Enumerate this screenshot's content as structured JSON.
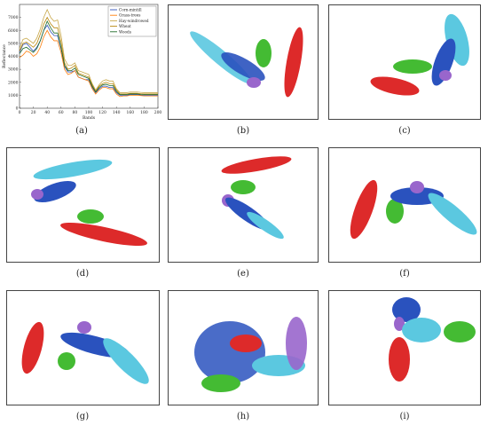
{
  "panels": [
    {
      "id": "a",
      "caption": "(a)"
    },
    {
      "id": "b",
      "caption": "(b)"
    },
    {
      "id": "c",
      "caption": "(c)"
    },
    {
      "id": "d",
      "caption": "(d)"
    },
    {
      "id": "e",
      "caption": "(e)"
    },
    {
      "id": "f",
      "caption": "(f)"
    },
    {
      "id": "g",
      "caption": "(g)"
    },
    {
      "id": "h",
      "caption": "(h)"
    },
    {
      "id": "i",
      "caption": "(i)"
    }
  ],
  "colors": {
    "corn": "#3355bb",
    "grass": "#ff7f0e",
    "hay": "#c8a84a",
    "wheat": "#b8860b",
    "woods": "#1f6b2a",
    "cyan": "#5bc8e0",
    "blue": "#2a52be",
    "green": "#44bb33",
    "red": "#dd2a2a",
    "purple": "#9966cc"
  },
  "chart_data": {
    "type": "line",
    "title": "",
    "xlabel": "Bands",
    "ylabel": "Reflectance",
    "xlim": [
      0,
      200
    ],
    "ylim": [
      0,
      8000
    ],
    "x_ticks": [
      "0",
      "20",
      "40",
      "60",
      "80",
      "100",
      "120",
      "140",
      "160",
      "180",
      "200"
    ],
    "y_ticks": [
      "0",
      "1000",
      "2000",
      "3000",
      "4000",
      "5000",
      "6000",
      "7000"
    ],
    "x": [
      0,
      5,
      10,
      15,
      20,
      25,
      30,
      35,
      40,
      45,
      50,
      55,
      60,
      65,
      70,
      75,
      80,
      85,
      90,
      95,
      100,
      105,
      110,
      115,
      120,
      125,
      130,
      135,
      140,
      145,
      150,
      155,
      160,
      165,
      170,
      175,
      180,
      185,
      190,
      195,
      200
    ],
    "series": [
      {
        "name": "Corn-mintill",
        "values": [
          4300,
          4900,
          5000,
          4700,
          4400,
          4700,
          5200,
          6000,
          6400,
          5900,
          5600,
          5600,
          4600,
          3200,
          2800,
          2800,
          2900,
          2400,
          2300,
          2200,
          2200,
          1600,
          1200,
          1500,
          1700,
          1700,
          1600,
          1600,
          1200,
          1000,
          1000,
          1000,
          1050,
          1050,
          1050,
          1020,
          1000,
          1000,
          1000,
          1000,
          1000
        ]
      },
      {
        "name": "Grass-trees",
        "values": [
          3900,
          4100,
          4400,
          4300,
          4000,
          4200,
          4700,
          5500,
          6000,
          5500,
          5200,
          5200,
          4300,
          3000,
          2600,
          2700,
          2900,
          2400,
          2300,
          2200,
          2100,
          1500,
          1100,
          1400,
          1600,
          1600,
          1500,
          1500,
          1100,
          900,
          950,
          950,
          1000,
          1000,
          1000,
          980,
          950,
          950,
          950,
          950,
          950
        ]
      },
      {
        "name": "Hay-windrowed",
        "values": [
          4600,
          5300,
          5400,
          5200,
          5000,
          5400,
          6100,
          7000,
          7600,
          7000,
          6700,
          6800,
          5600,
          3800,
          3300,
          3300,
          3500,
          2900,
          2800,
          2700,
          2600,
          1900,
          1400,
          1800,
          2100,
          2200,
          2100,
          2100,
          1500,
          1200,
          1200,
          1200,
          1250,
          1250,
          1250,
          1220,
          1200,
          1200,
          1200,
          1200,
          1200
        ]
      },
      {
        "name": "Wheat",
        "values": [
          4400,
          5000,
          5100,
          4900,
          4700,
          5000,
          5700,
          6500,
          7000,
          6500,
          6200,
          6200,
          5100,
          3500,
          3000,
          3100,
          3300,
          2700,
          2600,
          2500,
          2400,
          1800,
          1300,
          1700,
          1900,
          2000,
          1900,
          1900,
          1400,
          1100,
          1100,
          1100,
          1150,
          1150,
          1150,
          1120,
          1100,
          1100,
          1100,
          1100,
          1100
        ]
      },
      {
        "name": "Woods",
        "values": [
          4200,
          4600,
          4700,
          4500,
          4300,
          4600,
          5200,
          6000,
          6700,
          6200,
          5800,
          5800,
          4700,
          3300,
          2900,
          2900,
          3100,
          2600,
          2500,
          2400,
          2300,
          1700,
          1250,
          1600,
          1800,
          1850,
          1750,
          1750,
          1300,
          1050,
          1050,
          1050,
          1100,
          1100,
          1100,
          1070,
          1050,
          1050,
          1050,
          1050,
          1050
        ]
      }
    ],
    "legend_position": "top-right",
    "grid": false
  }
}
